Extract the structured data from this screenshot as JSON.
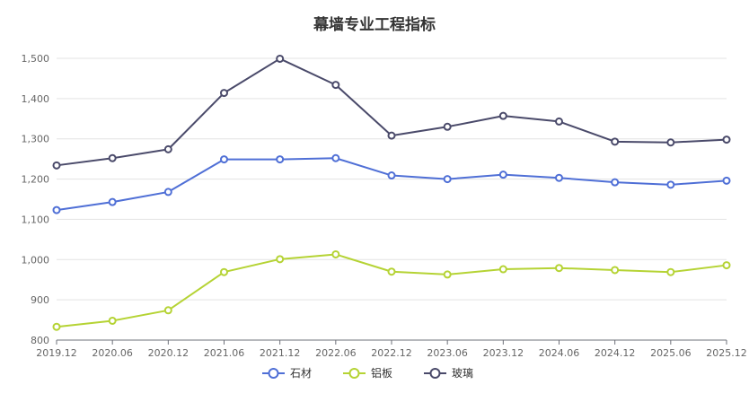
{
  "chart_data": {
    "type": "line",
    "title": "幕墙专业工程指标",
    "xlabel": "",
    "ylabel": "",
    "ylim": [
      800,
      1500
    ],
    "yticks": [
      800,
      900,
      1000,
      1100,
      1200,
      1300,
      1400,
      1500
    ],
    "ytick_labels": [
      "800",
      "900",
      "1,000",
      "1,100",
      "1,200",
      "1,300",
      "1,400",
      "1,500"
    ],
    "categories": [
      "2019.12",
      "2020.06",
      "2020.12",
      "2021.06",
      "2021.12",
      "2022.06",
      "2022.12",
      "2023.06",
      "2023.12",
      "2024.06",
      "2024.12",
      "2025.06",
      "2025.12"
    ],
    "grid": true,
    "legend_position": "bottom",
    "series": [
      {
        "name": "石材",
        "color": "#4f6fd6",
        "values": [
          1123,
          1143,
          1168,
          1249,
          1249,
          1252,
          1209,
          1200,
          1211,
          1203,
          1192,
          1186,
          1196
        ]
      },
      {
        "name": "铝板",
        "color": "#b5d334",
        "values": [
          833,
          848,
          874,
          969,
          1001,
          1013,
          970,
          963,
          976,
          979,
          974,
          969,
          986
        ]
      },
      {
        "name": "玻璃",
        "color": "#4a4a6a",
        "values": [
          1234,
          1252,
          1274,
          1414,
          1499,
          1434,
          1308,
          1330,
          1357,
          1343,
          1293,
          1291,
          1298
        ]
      }
    ]
  }
}
